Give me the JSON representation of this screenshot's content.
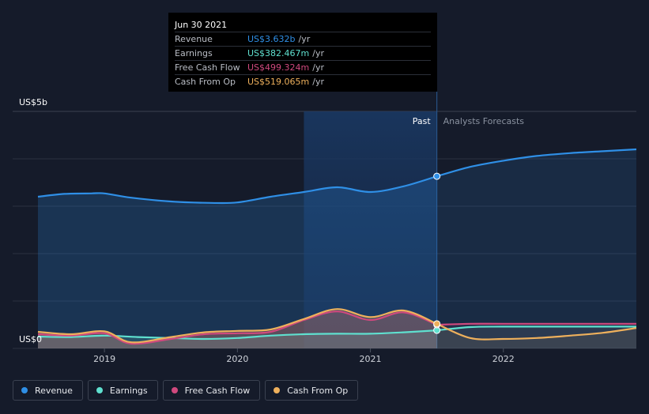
{
  "chart_data": {
    "type": "area",
    "y_axis": {
      "top_label": "US$5b",
      "bottom_label": "US$0",
      "ylim": [
        0,
        5
      ]
    },
    "x_ticks": [
      "2019",
      "2020",
      "2021",
      "2022"
    ],
    "xlim": [
      2018.5,
      2023.0
    ],
    "past_label": "Past",
    "forecast_label": "Analysts Forecasts",
    "highlight_date": 2021.5,
    "highlight_start": 2020.5,
    "series": [
      {
        "name": "Revenue",
        "color": "#2f8fe6",
        "x": [
          2018.5,
          2018.7,
          2018.9,
          2019.0,
          2019.2,
          2019.5,
          2019.8,
          2020.0,
          2020.25,
          2020.5,
          2020.75,
          2021.0,
          2021.25,
          2021.5
        ],
        "values": [
          3.2,
          3.26,
          3.27,
          3.27,
          3.18,
          3.1,
          3.07,
          3.08,
          3.2,
          3.3,
          3.4,
          3.3,
          3.42,
          3.632
        ],
        "forecast_x": [
          2021.5,
          2021.75,
          2022.0,
          2022.25,
          2022.5,
          2022.75,
          2023.0
        ],
        "forecast_values": [
          3.632,
          3.83,
          3.96,
          4.06,
          4.12,
          4.16,
          4.2
        ]
      },
      {
        "name": "Earnings",
        "color": "#5fe0cf",
        "x": [
          2018.5,
          2018.75,
          2019.0,
          2019.25,
          2019.5,
          2019.75,
          2020.0,
          2020.25,
          2020.5,
          2020.75,
          2021.0,
          2021.25,
          2021.5
        ],
        "values": [
          0.25,
          0.24,
          0.27,
          0.24,
          0.22,
          0.2,
          0.22,
          0.27,
          0.3,
          0.31,
          0.31,
          0.34,
          0.382
        ],
        "forecast_x": [
          2021.5,
          2021.75,
          2022.0,
          2022.5,
          2023.0
        ],
        "forecast_values": [
          0.382,
          0.45,
          0.46,
          0.46,
          0.46
        ]
      },
      {
        "name": "Free Cash Flow",
        "color": "#d0497e",
        "x": [
          2018.5,
          2018.75,
          2019.0,
          2019.2,
          2019.5,
          2019.75,
          2020.0,
          2020.25,
          2020.5,
          2020.75,
          2021.0,
          2021.25,
          2021.5
        ],
        "values": [
          0.3,
          0.27,
          0.32,
          0.1,
          0.2,
          0.3,
          0.32,
          0.35,
          0.6,
          0.78,
          0.6,
          0.76,
          0.499
        ],
        "forecast_x": [
          2021.5,
          2021.75,
          2022.0,
          2022.5,
          2023.0
        ],
        "forecast_values": [
          0.499,
          0.52,
          0.52,
          0.52,
          0.52
        ]
      },
      {
        "name": "Cash From Op",
        "color": "#eeb05c",
        "x": [
          2018.5,
          2018.75,
          2019.0,
          2019.2,
          2019.5,
          2019.75,
          2020.0,
          2020.25,
          2020.5,
          2020.75,
          2021.0,
          2021.25,
          2021.5
        ],
        "values": [
          0.35,
          0.3,
          0.36,
          0.13,
          0.24,
          0.34,
          0.37,
          0.4,
          0.62,
          0.83,
          0.66,
          0.8,
          0.519
        ],
        "forecast_x": [
          2021.5,
          2021.75,
          2022.0,
          2022.25,
          2022.5,
          2022.75,
          2023.0
        ],
        "forecast_values": [
          0.519,
          0.22,
          0.2,
          0.22,
          0.27,
          0.33,
          0.43
        ]
      }
    ]
  },
  "tooltip": {
    "date": "Jun 30 2021",
    "unit": "/yr",
    "rows": [
      {
        "label": "Revenue",
        "value": "US$3.632b",
        "color": "#2f8fe6"
      },
      {
        "label": "Earnings",
        "value": "US$382.467m",
        "color": "#5fe0cf"
      },
      {
        "label": "Free Cash Flow",
        "value": "US$499.324m",
        "color": "#d0497e"
      },
      {
        "label": "Cash From Op",
        "value": "US$519.065m",
        "color": "#eeb05c"
      }
    ]
  },
  "legend": [
    {
      "label": "Revenue",
      "color": "#2f8fe6"
    },
    {
      "label": "Earnings",
      "color": "#5fe0cf"
    },
    {
      "label": "Free Cash Flow",
      "color": "#d0497e"
    },
    {
      "label": "Cash From Op",
      "color": "#eeb05c"
    }
  ]
}
